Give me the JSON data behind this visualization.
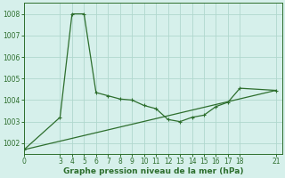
{
  "title": "Graphe pression niveau de la mer (hPa)",
  "background_color": "#d6f0eb",
  "grid_color": "#b0d8ce",
  "line_color": "#2d6e2d",
  "xlim": [
    0,
    21.5
  ],
  "ylim": [
    1001.5,
    1008.5
  ],
  "xticks": [
    0,
    3,
    4,
    5,
    6,
    7,
    8,
    9,
    10,
    11,
    12,
    13,
    14,
    15,
    16,
    17,
    18,
    21
  ],
  "xtick_labels": [
    "0",
    "3",
    "4",
    "5",
    "6",
    "7",
    "8",
    "9",
    "10",
    "11",
    "12",
    "13",
    "14",
    "15",
    "16",
    "17",
    "18",
    "21"
  ],
  "yticks": [
    1002,
    1003,
    1004,
    1005,
    1006,
    1007,
    1008
  ],
  "series1_x": [
    0,
    3,
    4,
    5,
    6,
    7,
    8,
    9,
    10,
    11,
    12,
    13,
    14,
    15,
    16,
    17,
    18,
    21
  ],
  "series1_y": [
    1001.7,
    1003.2,
    1008.0,
    1008.0,
    1004.35,
    1004.2,
    1004.05,
    1004.0,
    1003.75,
    1003.6,
    1003.1,
    1003.0,
    1003.2,
    1003.3,
    1003.7,
    1003.9,
    1004.55,
    1004.45
  ],
  "series2_x": [
    0,
    21
  ],
  "series2_y": [
    1001.7,
    1004.45
  ],
  "tick_labelsize": 5.5,
  "xlabel_fontsize": 6.5
}
